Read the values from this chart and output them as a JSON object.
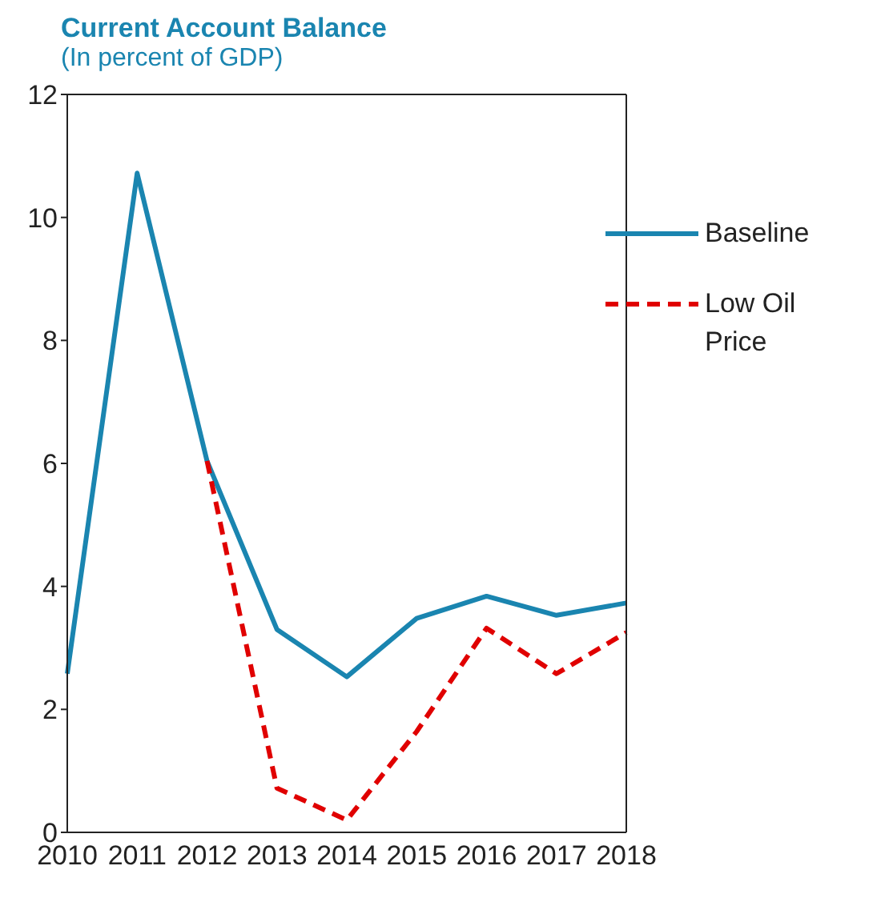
{
  "chart_data": {
    "type": "line",
    "title": "Current Account Balance",
    "subtitle": "(In percent of GDP)",
    "categories": [
      "2010",
      "2011",
      "2012",
      "2013",
      "2014",
      "2015",
      "2016",
      "2017",
      "2018"
    ],
    "series": [
      {
        "name": "Baseline",
        "color": "#1a85b0",
        "values": [
          2.58,
          10.72,
          6.04,
          3.3,
          2.53,
          3.48,
          3.84,
          3.53,
          3.73
        ],
        "line_style": "solid"
      },
      {
        "name": "Low Oil Price",
        "color": "#e00000",
        "values": [
          null,
          null,
          6.04,
          0.72,
          0.2,
          1.64,
          3.32,
          2.58,
          3.25
        ],
        "line_style": "dashed"
      }
    ],
    "ylim": [
      0,
      12
    ],
    "yticks": [
      0,
      2,
      4,
      6,
      8,
      10,
      12
    ],
    "grid": false,
    "legend": "top right",
    "marker": "none"
  }
}
